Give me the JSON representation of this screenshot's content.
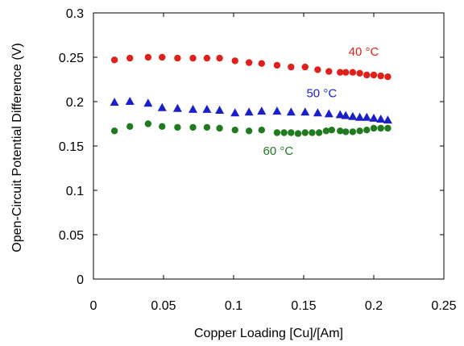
{
  "chart_data": {
    "type": "scatter",
    "title": "",
    "xlabel": "Copper Loading [Cu]/[Am]",
    "ylabel": "Open-Circuit Potential Difference (V)",
    "xlim": [
      0,
      0.25
    ],
    "ylim": [
      0,
      0.3
    ],
    "x_ticks": [
      0,
      0.05,
      0.1,
      0.15,
      0.2,
      0.25
    ],
    "x_tick_labels": [
      "0",
      "0.05",
      "0.1",
      "0.15",
      "0.2",
      "0.25"
    ],
    "y_ticks": [
      0,
      0.05,
      0.1,
      0.15,
      0.2,
      0.25,
      0.3
    ],
    "y_tick_labels": [
      "0",
      "0.05",
      "0.1",
      "0.15",
      "0.2",
      "0.25",
      "0.3"
    ],
    "grid": false,
    "legend": "none",
    "series": [
      {
        "name": "40 °C",
        "color": "#e0201b",
        "marker": "circle",
        "x": [
          0.015,
          0.026,
          0.039,
          0.049,
          0.06,
          0.071,
          0.081,
          0.09,
          0.101,
          0.111,
          0.12,
          0.131,
          0.141,
          0.151,
          0.16,
          0.168,
          0.176,
          0.18,
          0.185,
          0.19,
          0.195,
          0.2,
          0.205,
          0.21
        ],
        "y": [
          0.247,
          0.249,
          0.25,
          0.25,
          0.249,
          0.249,
          0.249,
          0.249,
          0.246,
          0.244,
          0.243,
          0.241,
          0.239,
          0.239,
          0.236,
          0.234,
          0.233,
          0.233,
          0.233,
          0.232,
          0.23,
          0.23,
          0.229,
          0.228
        ]
      },
      {
        "name": "50 °C",
        "color": "#1b1fc9",
        "marker": "triangle",
        "x": [
          0.015,
          0.026,
          0.039,
          0.049,
          0.06,
          0.071,
          0.081,
          0.09,
          0.101,
          0.111,
          0.12,
          0.131,
          0.141,
          0.151,
          0.16,
          0.168,
          0.176,
          0.18,
          0.185,
          0.19,
          0.195,
          0.2,
          0.205,
          0.21
        ],
        "y": [
          0.199,
          0.2,
          0.198,
          0.193,
          0.192,
          0.191,
          0.191,
          0.19,
          0.187,
          0.188,
          0.189,
          0.189,
          0.188,
          0.188,
          0.187,
          0.186,
          0.185,
          0.184,
          0.183,
          0.182,
          0.182,
          0.181,
          0.18,
          0.179
        ]
      },
      {
        "name": "60 °C",
        "color": "#207a20",
        "marker": "circle",
        "x": [
          0.015,
          0.026,
          0.039,
          0.049,
          0.06,
          0.071,
          0.081,
          0.09,
          0.101,
          0.111,
          0.12,
          0.131,
          0.136,
          0.141,
          0.146,
          0.151,
          0.156,
          0.161,
          0.166,
          0.17,
          0.176,
          0.18,
          0.185,
          0.19,
          0.195,
          0.2,
          0.205,
          0.21
        ],
        "y": [
          0.167,
          0.172,
          0.175,
          0.172,
          0.171,
          0.171,
          0.171,
          0.17,
          0.168,
          0.167,
          0.168,
          0.165,
          0.165,
          0.165,
          0.164,
          0.165,
          0.165,
          0.165,
          0.167,
          0.168,
          0.167,
          0.166,
          0.166,
          0.167,
          0.168,
          0.17,
          0.17,
          0.17
        ]
      }
    ],
    "annotations": [
      {
        "text": "40 °C",
        "x": 0.182,
        "y": 0.252,
        "color": "#e0201b"
      },
      {
        "text": "50 °C",
        "x": 0.152,
        "y": 0.205,
        "color": "#1b1fc9"
      },
      {
        "text": "60 °C",
        "x": 0.121,
        "y": 0.14,
        "color": "#207a20"
      }
    ]
  }
}
